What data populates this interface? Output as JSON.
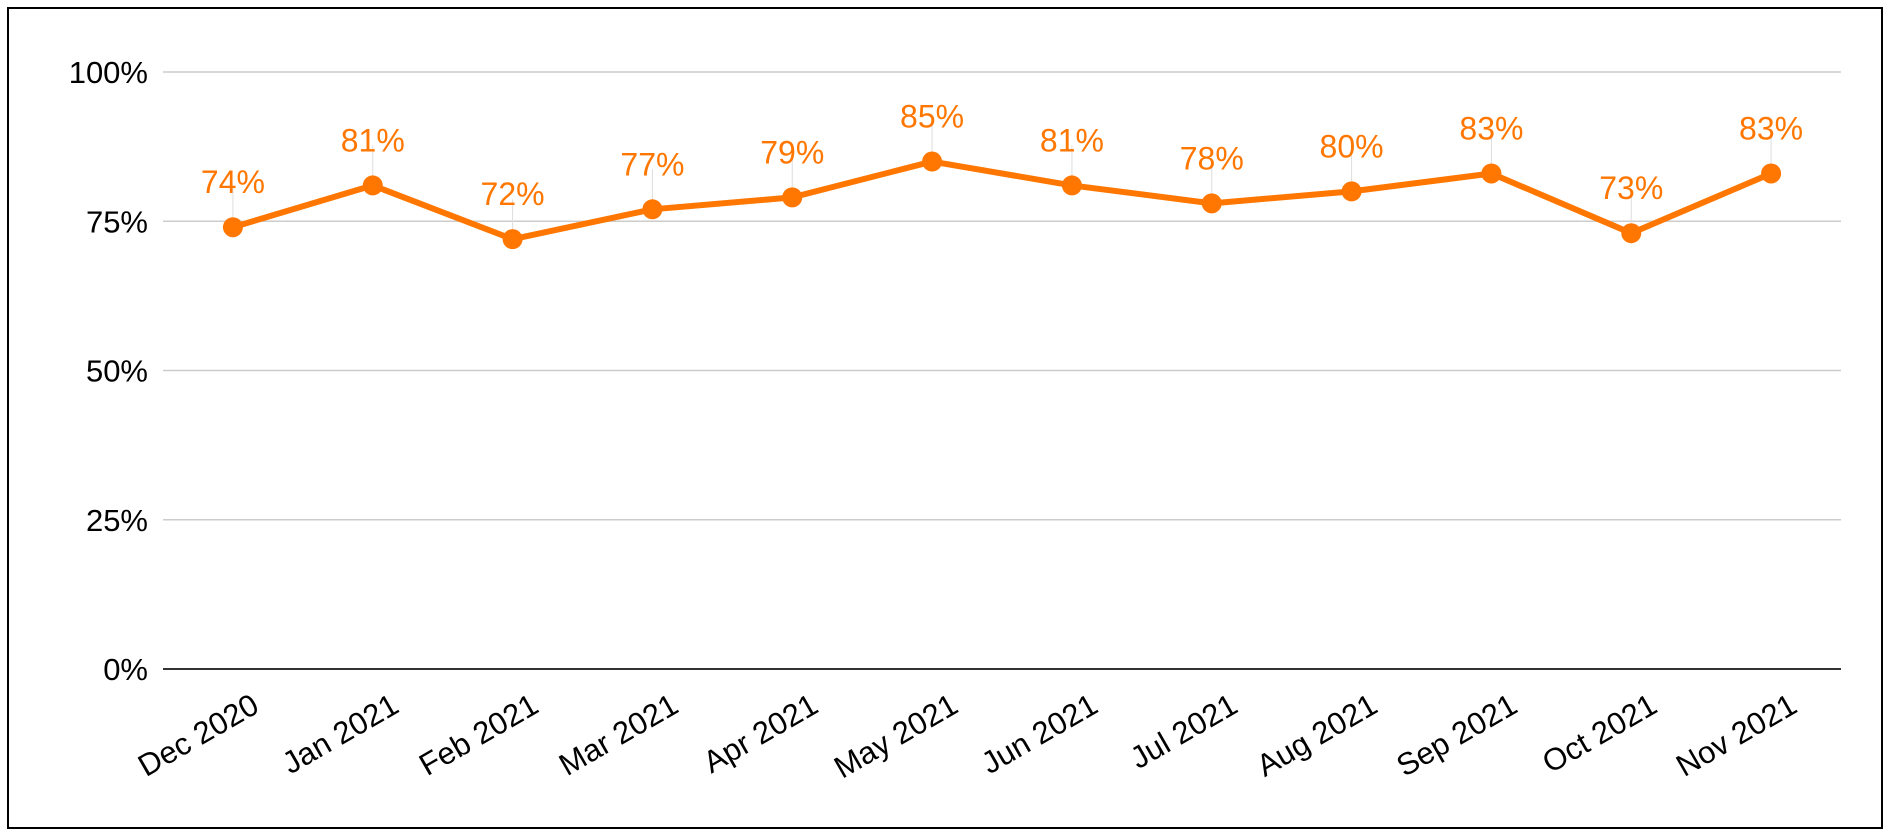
{
  "chart_data": {
    "type": "line",
    "title": "",
    "xlabel": "",
    "ylabel": "",
    "categories": [
      "Dec 2020",
      "Jan 2021",
      "Feb 2021",
      "Mar 2021",
      "Apr 2021",
      "May 2021",
      "Jun 2021",
      "Jul 2021",
      "Aug 2021",
      "Sep 2021",
      "Oct 2021",
      "Nov 2021"
    ],
    "series": [
      {
        "values": [
          74,
          81,
          72,
          77,
          79,
          85,
          81,
          78,
          80,
          83,
          73,
          83
        ],
        "color": "#FF7700"
      }
    ],
    "data_labels": [
      "74%",
      "81%",
      "72%",
      "77%",
      "79%",
      "85%",
      "81%",
      "78%",
      "80%",
      "83%",
      "73%",
      "83%"
    ],
    "ylim": [
      0,
      100
    ],
    "yticks": [
      0,
      25,
      50,
      75,
      100
    ],
    "ytick_labels": [
      "0%",
      "25%",
      "50%",
      "75%",
      "100%"
    ],
    "grid": true,
    "legend": "none",
    "colors": {
      "line": "#FF7700",
      "grid": "#CCCCCC",
      "axis": "#333333",
      "text": "#000000",
      "border": "#000000"
    }
  }
}
